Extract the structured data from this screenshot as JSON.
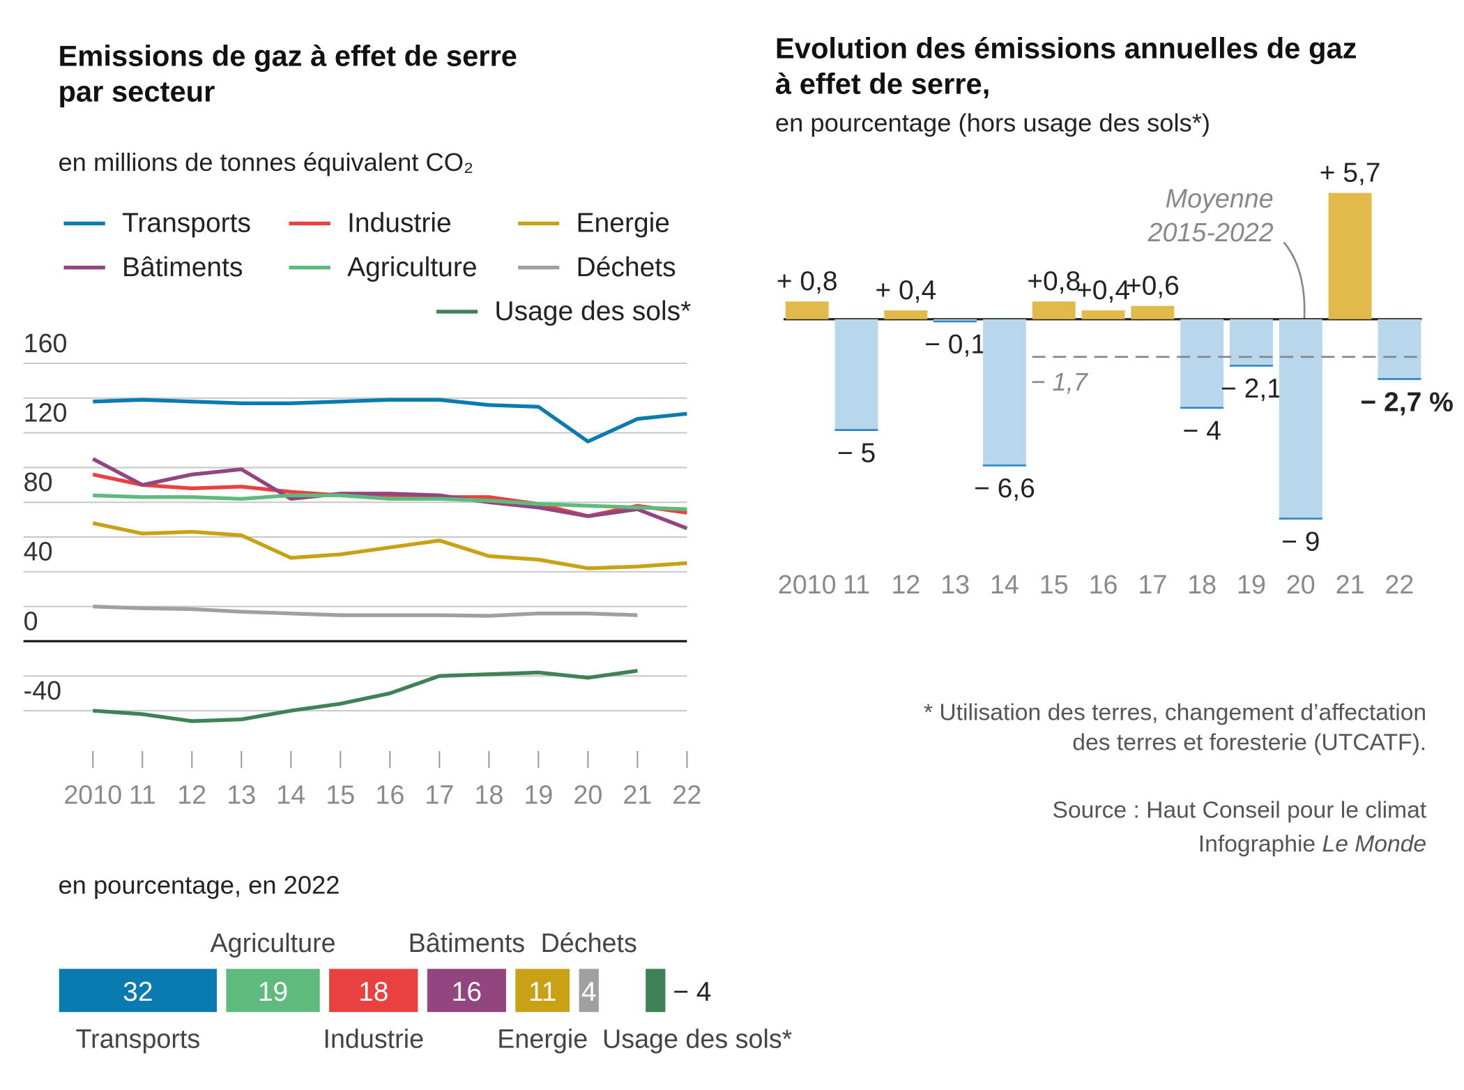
{
  "chart_data": [
    {
      "type": "line",
      "title": [
        "Emissions de gaz à effet de serre",
        "par secteur"
      ],
      "subtitle": "en millions de tonnes équivalent CO₂",
      "categories": [
        "2010",
        "11",
        "12",
        "13",
        "14",
        "15",
        "16",
        "17",
        "18",
        "19",
        "20",
        "21",
        "22"
      ],
      "ylim": [
        -40,
        160
      ],
      "yticks": [
        -40,
        0,
        40,
        80,
        120,
        160
      ],
      "minor_grid": [
        -20,
        20,
        60,
        100,
        140
      ],
      "series": [
        {
          "name": "Transports",
          "color": "#0a7bb0",
          "values": [
            138,
            139,
            138,
            137,
            137,
            138,
            139,
            139,
            136,
            135,
            115,
            128,
            131
          ]
        },
        {
          "name": "Industrie",
          "color": "#e8413f",
          "values": [
            96,
            90,
            88,
            89,
            86,
            84,
            83,
            83,
            83,
            79,
            72,
            78,
            74
          ]
        },
        {
          "name": "Energie",
          "color": "#c9a115",
          "values": [
            68,
            62,
            63,
            61,
            48,
            50,
            54,
            58,
            49,
            47,
            42,
            43,
            45
          ]
        },
        {
          "name": "Bâtiments",
          "color": "#93457f",
          "values": [
            105,
            90,
            96,
            99,
            82,
            85,
            85,
            84,
            80,
            77,
            72,
            76,
            65
          ]
        },
        {
          "name": "Agriculture",
          "color": "#5fba7d",
          "values": [
            84,
            83,
            83,
            82,
            84,
            84,
            82,
            82,
            81,
            79,
            78,
            77,
            76
          ]
        },
        {
          "name": "Déchets",
          "color": "#a0a0a0",
          "values": [
            20,
            19,
            18.5,
            17,
            16,
            15,
            15,
            15,
            14.6,
            16,
            16,
            15,
            null
          ]
        },
        {
          "name": "Usage des sols*",
          "color": "#3e8256",
          "values": [
            -40,
            -42,
            -46,
            -45,
            -40,
            -36,
            -30,
            -20,
            -19,
            -18,
            -21,
            -17,
            null
          ]
        }
      ]
    },
    {
      "type": "stacked_bar",
      "subtitle": "en pourcentage, en 2022",
      "categories": [
        "Transports",
        "Agriculture",
        "Industrie",
        "Bâtiments",
        "Energie",
        "Déchets",
        "Usage des sols*"
      ],
      "values": [
        32,
        19,
        18,
        16,
        11,
        4,
        -4
      ],
      "value_labels": [
        "32",
        "19",
        "18",
        "16",
        "11",
        "4",
        "− 4"
      ],
      "colors": [
        "#0a7bb0",
        "#5fba7d",
        "#e8413f",
        "#93457f",
        "#c9a115",
        "#a0a0a0",
        "#3e8256"
      ]
    },
    {
      "type": "bar",
      "title": [
        "Evolution des émissions annuelles de gaz",
        "à effet de serre,"
      ],
      "subtitle": "en pourcentage (hors usage des sols*)",
      "categories": [
        "2010",
        "11",
        "12",
        "13",
        "14",
        "15",
        "16",
        "17",
        "18",
        "19",
        "20",
        "21",
        "22"
      ],
      "values": [
        0.8,
        -5,
        0.4,
        -0.1,
        -6.6,
        0.8,
        0.4,
        0.6,
        -4,
        -2.1,
        -9,
        5.7,
        -2.7
      ],
      "value_labels": [
        "+ 0,8",
        "− 5",
        "+ 0,4",
        "− 0,1",
        "− 6,6",
        "+0,8",
        "+0,4",
        "+0,6",
        "− 4",
        "− 2,1",
        "− 9",
        "+ 5,7",
        "− 2,7 %"
      ],
      "highlight": 12,
      "ylim": [
        -10,
        6
      ],
      "colors": {
        "positive": "#e2b94b",
        "negative": "#b8d7ec",
        "negative_edge": "#2f86c4"
      },
      "average": -1.7,
      "average_label": "− 1,7",
      "annotation": [
        "Moyenne",
        "2015-2022"
      ]
    }
  ],
  "notes": {
    "footnote": [
      "* Utilisation des terres, changement d’affectation",
      "des terres et foresterie (UTCATF)."
    ],
    "source": "Source : Haut Conseil pour le climat",
    "credit": [
      "Infographie",
      "Le Monde"
    ]
  }
}
